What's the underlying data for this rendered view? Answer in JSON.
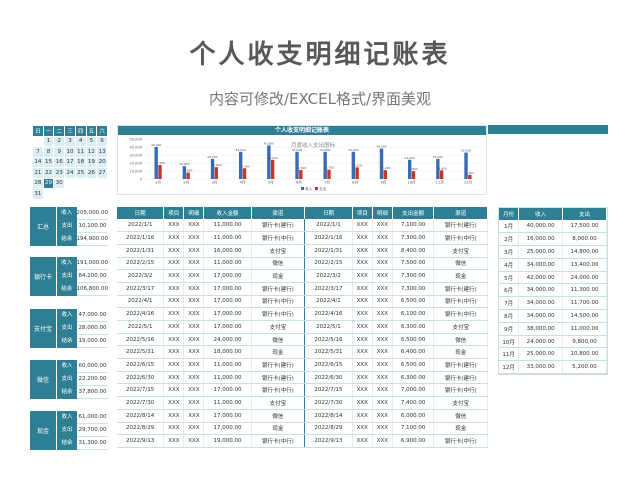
{
  "title": "个人收支明细记账表",
  "subtitle": "内容可修改/EXCEL格式/界面美观",
  "calendar": {
    "weekdays": [
      "日",
      "一",
      "二",
      "三",
      "四",
      "五",
      "六"
    ],
    "weeks": [
      [
        "",
        "1",
        "2",
        "3",
        "4",
        "5",
        "6"
      ],
      [
        "7",
        "8",
        "9",
        "10",
        "11",
        "12",
        "13"
      ],
      [
        "14",
        "15",
        "16",
        "17",
        "18",
        "19",
        "20"
      ],
      [
        "21",
        "22",
        "23",
        "24",
        "25",
        "26",
        "27"
      ],
      [
        "28",
        "29",
        "30",
        "",
        "",
        "",
        ""
      ],
      [
        "31",
        "",
        "",
        "",
        "",
        "",
        ""
      ]
    ],
    "today": "29"
  },
  "chart_header": "个人收支明细记账表",
  "chart_data": {
    "type": "bar",
    "title": "月度收入支出图标",
    "categories": [
      "1月",
      "2月",
      "3月",
      "4月",
      "5月",
      "6月",
      "7月",
      "8月",
      "9月",
      "10月",
      "11月",
      "12月"
    ],
    "series": [
      {
        "name": "收入",
        "color": "#3c6bb5",
        "values": [
          40000,
          16000,
          25000,
          34000,
          42000,
          34000,
          34000,
          34000,
          38000,
          24000,
          25000,
          33000
        ]
      },
      {
        "name": "支出",
        "color": "#c0392b",
        "values": [
          17500,
          8000,
          14800,
          13400,
          24000,
          11300,
          11700,
          14500,
          11000,
          9800,
          10800,
          5200
        ]
      }
    ],
    "ylim": [
      0,
      50000
    ],
    "yticks": [
      "50,000",
      "40,000",
      "30,000",
      "20,000",
      "10,000",
      "0"
    ],
    "legend": "bottom-center",
    "legend_labels": [
      "收入",
      "支出"
    ]
  },
  "summary": [
    {
      "name": "汇总",
      "rows": [
        {
          "k": "收入",
          "v": "205,000.00"
        },
        {
          "k": "支出",
          "v": "10,100.00"
        },
        {
          "k": "结余",
          "v": "194,900.00"
        }
      ]
    },
    {
      "name": "银行卡",
      "rows": [
        {
          "k": "收入",
          "v": "191,000.00"
        },
        {
          "k": "支出",
          "v": "84,200.00"
        },
        {
          "k": "结余",
          "v": "106,800.00"
        }
      ]
    },
    {
      "name": "支付宝",
      "rows": [
        {
          "k": "收入",
          "v": "47,000.00"
        },
        {
          "k": "支出",
          "v": "28,000.00"
        },
        {
          "k": "结余",
          "v": "19,000.00"
        }
      ]
    },
    {
      "name": "微信",
      "rows": [
        {
          "k": "收入",
          "v": "60,000.00"
        },
        {
          "k": "支出",
          "v": "22,200.00"
        },
        {
          "k": "结余",
          "v": "37,800.00"
        }
      ]
    },
    {
      "name": "现金",
      "rows": [
        {
          "k": "收入",
          "v": "61,000.00"
        },
        {
          "k": "支出",
          "v": "29,700.00"
        },
        {
          "k": "结余",
          "v": "31,300.00"
        }
      ]
    }
  ],
  "main_table": {
    "headers": [
      "日期",
      "项目",
      "明细",
      "收入金额",
      "渠道",
      "日期",
      "项目",
      "明细",
      "支出金额",
      "渠道"
    ],
    "rows": [
      [
        "2022/1/1",
        "XXX",
        "XXX",
        "11,000.00",
        "银行卡(建行)",
        "2022/1/1",
        "XXX",
        "XXX",
        "7,100.00",
        "银行卡(建行)"
      ],
      [
        "2022/1/16",
        "XXX",
        "XXX",
        "11,000.00",
        "银行卡(中行)",
        "2022/1/16",
        "XXX",
        "XXX",
        "7,300.00",
        "银行卡(中行)"
      ],
      [
        "2022/1/31",
        "XXX",
        "XXX",
        "16,000.00",
        "支付宝",
        "2022/1/31",
        "XXX",
        "XXX",
        "8,400.00",
        "支付宝"
      ],
      [
        "2022/2/15",
        "XXX",
        "XXX",
        "11,000.00",
        "微信",
        "2022/2/15",
        "XXX",
        "XXX",
        "7,500.00",
        "微信"
      ],
      [
        "2022/3/2",
        "XXX",
        "XXX",
        "17,000.00",
        "现金",
        "2022/3/2",
        "XXX",
        "XXX",
        "7,300.00",
        "现金"
      ],
      [
        "2022/3/17",
        "XXX",
        "XXX",
        "17,000.00",
        "银行卡(建行)",
        "2022/3/17",
        "XXX",
        "XXX",
        "7,300.00",
        "银行卡(建行)"
      ],
      [
        "2022/4/1",
        "XXX",
        "XXX",
        "17,000.00",
        "银行卡(中行)",
        "2022/4/1",
        "XXX",
        "XXX",
        "6,500.00",
        "银行卡(中行)"
      ],
      [
        "2022/4/16",
        "XXX",
        "XXX",
        "17,000.00",
        "银行卡(中行)",
        "2022/4/16",
        "XXX",
        "XXX",
        "6,100.00",
        "银行卡(中行)"
      ],
      [
        "2022/5/1",
        "XXX",
        "XXX",
        "17,000.00",
        "支付宝",
        "2022/5/1",
        "XXX",
        "XXX",
        "6,300.00",
        "支付宝"
      ],
      [
        "2022/5/16",
        "XXX",
        "XXX",
        "24,000.00",
        "微信",
        "2022/5/16",
        "XXX",
        "XXX",
        "6,500.00",
        "微信"
      ],
      [
        "2022/5/31",
        "XXX",
        "XXX",
        "18,000.00",
        "现金",
        "2022/5/31",
        "XXX",
        "XXX",
        "6,400.00",
        "现金"
      ],
      [
        "2022/6/15",
        "XXX",
        "XXX",
        "11,000.00",
        "银行卡(建行)",
        "2022/6/15",
        "XXX",
        "XXX",
        "6,500.00",
        "银行卡(建行)"
      ],
      [
        "2022/6/30",
        "XXX",
        "XXX",
        "11,000.00",
        "银行卡(建行)",
        "2022/6/30",
        "XXX",
        "XXX",
        "6,300.00",
        "银行卡(建行)"
      ],
      [
        "2022/7/15",
        "XXX",
        "XXX",
        "17,000.00",
        "银行卡(中行)",
        "2022/7/15",
        "XXX",
        "XXX",
        "7,000.00",
        "银行卡(中行)"
      ],
      [
        "2022/7/30",
        "XXX",
        "XXX",
        "11,000.00",
        "支付宝",
        "2022/7/30",
        "XXX",
        "XXX",
        "7,400.00",
        "支付宝"
      ],
      [
        "2022/8/14",
        "XXX",
        "XXX",
        "17,000.00",
        "微信",
        "2022/8/14",
        "XXX",
        "XXX",
        "6,000.00",
        "微信"
      ],
      [
        "2022/8/29",
        "XXX",
        "XXX",
        "17,000.00",
        "现金",
        "2022/8/29",
        "XXX",
        "XXX",
        "7,100.00",
        "现金"
      ],
      [
        "2022/9/13",
        "XXX",
        "XXX",
        "19,000.00",
        "银行卡(中行)",
        "2022/9/13",
        "XXX",
        "XXX",
        "6,900.00",
        "银行卡(中行)"
      ]
    ]
  },
  "month_table": {
    "headers": [
      "月份",
      "收入",
      "支出"
    ],
    "rows": [
      [
        "1月",
        "40,000.00",
        "17,500.00"
      ],
      [
        "2月",
        "16,000.00",
        "8,000.00"
      ],
      [
        "3月",
        "25,000.00",
        "14,800.00"
      ],
      [
        "4月",
        "34,000.00",
        "13,400.00"
      ],
      [
        "5月",
        "42,000.00",
        "24,000.00"
      ],
      [
        "6月",
        "34,000.00",
        "11,300.00"
      ],
      [
        "7月",
        "34,000.00",
        "11,700.00"
      ],
      [
        "8月",
        "34,000.00",
        "14,500.00"
      ],
      [
        "9月",
        "38,000.00",
        "11,000.00"
      ],
      [
        "10月",
        "24,000.00",
        "9,800.00"
      ],
      [
        "11月",
        "25,000.00",
        "10,800.00"
      ],
      [
        "12月",
        "33,000.00",
        "5,200.00"
      ]
    ]
  }
}
